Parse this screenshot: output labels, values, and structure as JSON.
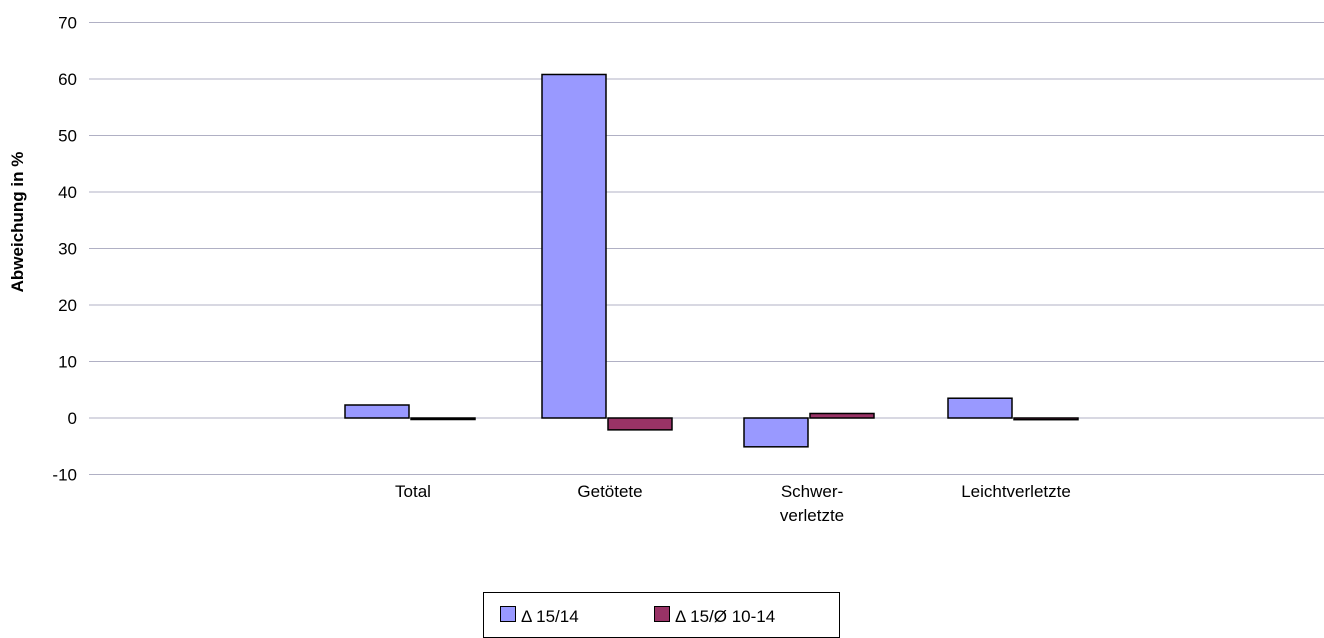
{
  "chart_data": {
    "type": "bar",
    "ylabel": "Abweichung in %",
    "ylim": [
      -10,
      70
    ],
    "yticks": [
      "-10",
      "0",
      "10",
      "20",
      "30",
      "40",
      "50",
      "60",
      "70"
    ],
    "categories": [
      "Total",
      "Getötete",
      "Schwer-\nverletzte",
      "Leichtverletzte"
    ],
    "series": [
      {
        "name": "Δ 15/14",
        "values": [
          2.3,
          60.8,
          -5.1,
          3.5
        ],
        "color": "#9999ff"
      },
      {
        "name": "Δ 15/Ø 10-14",
        "values": [
          -0.2,
          -2.1,
          0.8,
          -0.3
        ],
        "color": "#993366"
      }
    ],
    "grid": true,
    "legend_position": "bottom"
  }
}
